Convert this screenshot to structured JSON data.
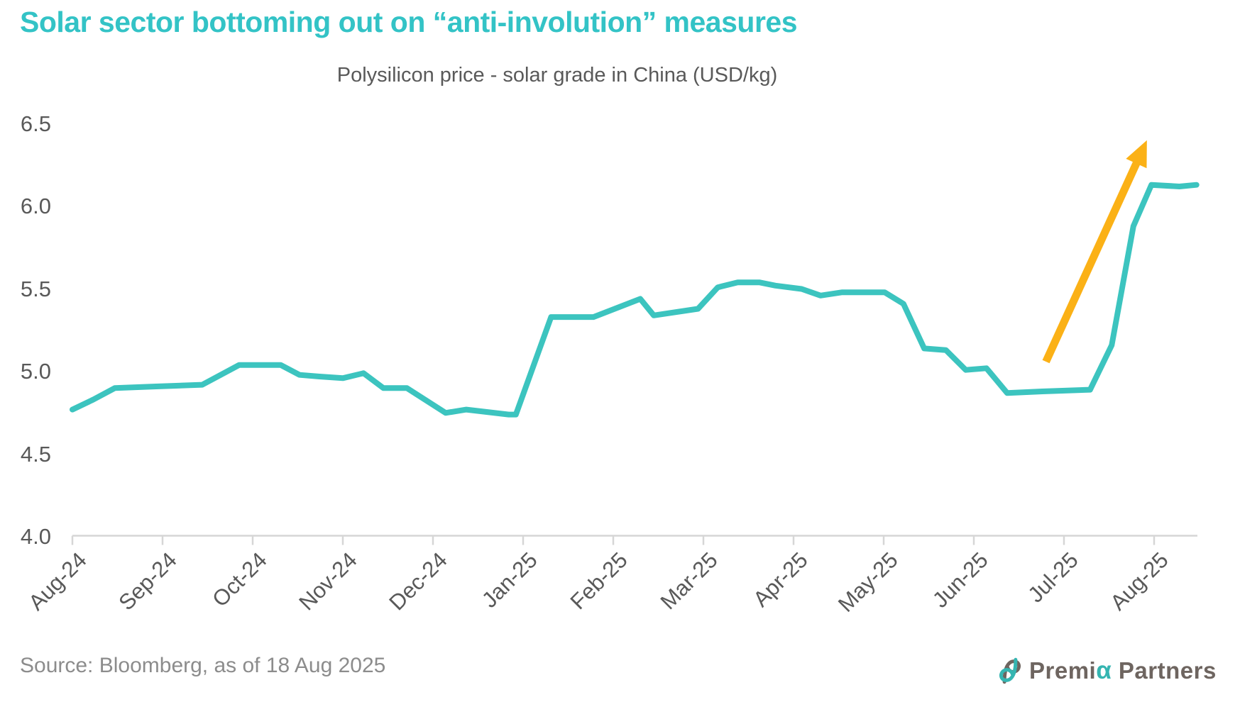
{
  "header": {
    "title": "Solar sector bottoming out on “anti-involution” measures"
  },
  "chart_data": {
    "type": "line",
    "title": "Polysilicon price - solar grade in China (USD/kg)",
    "x_tick_labels": [
      "Aug-24",
      "Sep-24",
      "Oct-24",
      "Nov-24",
      "Dec-24",
      "Jan-25",
      "Feb-25",
      "Mar-25",
      "Apr-25",
      "May-25",
      "Jun-25",
      "Jul-25",
      "Aug-25"
    ],
    "y_tick_labels": [
      "6.5",
      "6.0",
      "5.5",
      "5.0",
      "4.5",
      "4.0"
    ],
    "ylim": [
      4.0,
      6.5
    ],
    "x_span_months": 12.47,
    "grid": false,
    "legend_position": "none",
    "line_color": "#3CC4BF",
    "axis_color": "#D6D6D6",
    "tick_text_color": "#595959",
    "series": [
      {
        "name": "Polysilicon price - solar grade in China (USD/kg)",
        "points": [
          [
            0.0,
            4.77
          ],
          [
            0.23,
            4.83
          ],
          [
            0.47,
            4.9
          ],
          [
            0.93,
            4.91
          ],
          [
            1.44,
            4.92
          ],
          [
            1.85,
            5.04
          ],
          [
            2.31,
            5.04
          ],
          [
            2.52,
            4.98
          ],
          [
            2.74,
            4.97
          ],
          [
            3.0,
            4.96
          ],
          [
            3.23,
            4.99
          ],
          [
            3.45,
            4.9
          ],
          [
            3.71,
            4.9
          ],
          [
            4.14,
            4.75
          ],
          [
            4.37,
            4.77
          ],
          [
            4.84,
            4.74
          ],
          [
            4.92,
            4.74
          ],
          [
            5.31,
            5.33
          ],
          [
            5.78,
            5.33
          ],
          [
            6.3,
            5.44
          ],
          [
            6.45,
            5.34
          ],
          [
            6.94,
            5.38
          ],
          [
            7.16,
            5.51
          ],
          [
            7.38,
            5.54
          ],
          [
            7.62,
            5.54
          ],
          [
            7.8,
            5.52
          ],
          [
            8.09,
            5.5
          ],
          [
            8.3,
            5.46
          ],
          [
            8.54,
            5.48
          ],
          [
            9.01,
            5.48
          ],
          [
            9.22,
            5.41
          ],
          [
            9.45,
            5.14
          ],
          [
            9.69,
            5.13
          ],
          [
            9.91,
            5.01
          ],
          [
            10.14,
            5.02
          ],
          [
            10.37,
            4.87
          ],
          [
            10.76,
            4.88
          ],
          [
            11.29,
            4.89
          ],
          [
            11.53,
            5.16
          ],
          [
            11.77,
            5.88
          ],
          [
            11.97,
            6.13
          ],
          [
            12.28,
            6.12
          ],
          [
            12.47,
            6.13
          ]
        ]
      }
    ],
    "annotation_arrow": {
      "color": "#FBB116",
      "from": [
        10.8,
        5.06
      ],
      "to": [
        11.92,
        6.4
      ]
    }
  },
  "footer": {
    "source": "Source: Bloomberg, as of 18 Aug 2025"
  },
  "logo": {
    "name_part1": "Premi",
    "name_alpha": "α",
    "name_part2": " Partners",
    "text_color": "#6E6560",
    "accent_color": "#35B5B1"
  }
}
